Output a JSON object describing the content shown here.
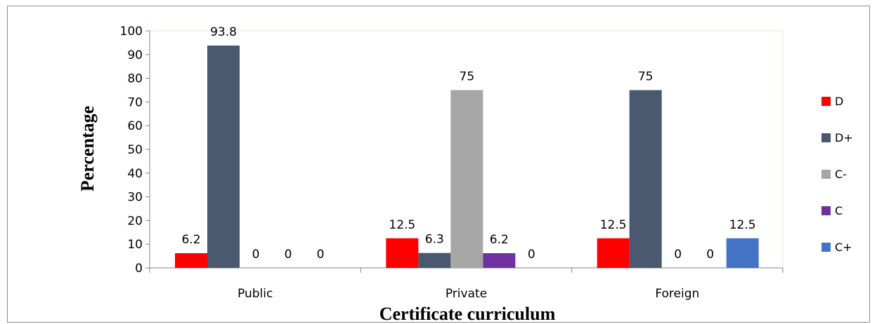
{
  "chart_data": {
    "type": "bar",
    "categories": [
      "Public",
      "Private",
      "Foreign"
    ],
    "series": [
      {
        "name": "D",
        "color": "#ff0000",
        "values": [
          6.2,
          12.5,
          12.5
        ],
        "labels": [
          "6.2",
          "12.5",
          "12.5"
        ]
      },
      {
        "name": "D+",
        "color": "#4a5870",
        "values": [
          93.8,
          6.3,
          75
        ],
        "labels": [
          "93.8",
          "6.3",
          "75"
        ]
      },
      {
        "name": "C-",
        "color": "#a6a6a6",
        "values": [
          0,
          75,
          0
        ],
        "labels": [
          "0",
          "75",
          "0"
        ]
      },
      {
        "name": "C",
        "color": "#7030a0",
        "values": [
          0,
          6.2,
          0
        ],
        "labels": [
          "0",
          "6.2",
          "0"
        ]
      },
      {
        "name": "C+",
        "color": "#4472c4",
        "values": [
          0,
          0,
          12.5
        ],
        "labels": [
          "0",
          "0",
          "12.5"
        ]
      }
    ],
    "xlabel": "Certificate curriculum",
    "ylabel": "Percentage",
    "ylim": [
      0,
      100
    ],
    "yticks": [
      "0",
      "10",
      "20",
      "30",
      "40",
      "50",
      "60",
      "70",
      "80",
      "90",
      "100"
    ],
    "grid": false,
    "legend_position": "right"
  }
}
